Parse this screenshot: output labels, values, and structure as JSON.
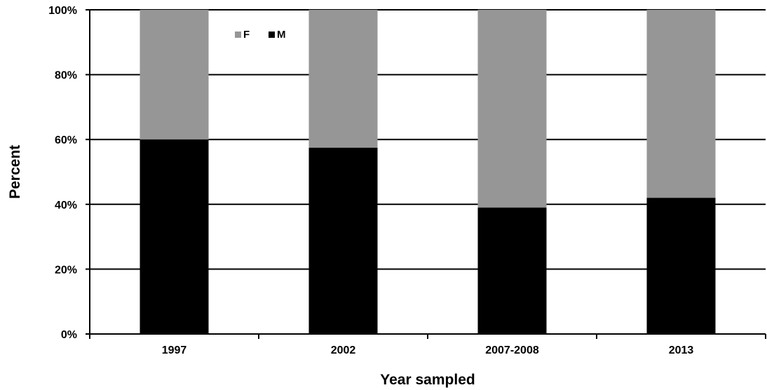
{
  "chart_data": {
    "type": "bar",
    "stacked": true,
    "percent_stacked": true,
    "title": "",
    "xlabel": "Year sampled",
    "ylabel": "Percent",
    "categories": [
      "1997",
      "2002",
      "2007-2008",
      "2013"
    ],
    "ylim": [
      0,
      100
    ],
    "yticks": [
      0,
      20,
      40,
      60,
      80,
      100
    ],
    "ytick_labels": [
      "0%",
      "20%",
      "40%",
      "60%",
      "80%",
      "100%"
    ],
    "grid": "horizontal",
    "legend_position": "top-left inside",
    "series": [
      {
        "name": "M",
        "values": [
          60,
          57.5,
          39,
          42
        ],
        "color": "#000000"
      },
      {
        "name": "F",
        "values": [
          40,
          42.5,
          61,
          58
        ],
        "color": "#969696"
      }
    ],
    "legend_order": [
      "F",
      "M"
    ]
  }
}
